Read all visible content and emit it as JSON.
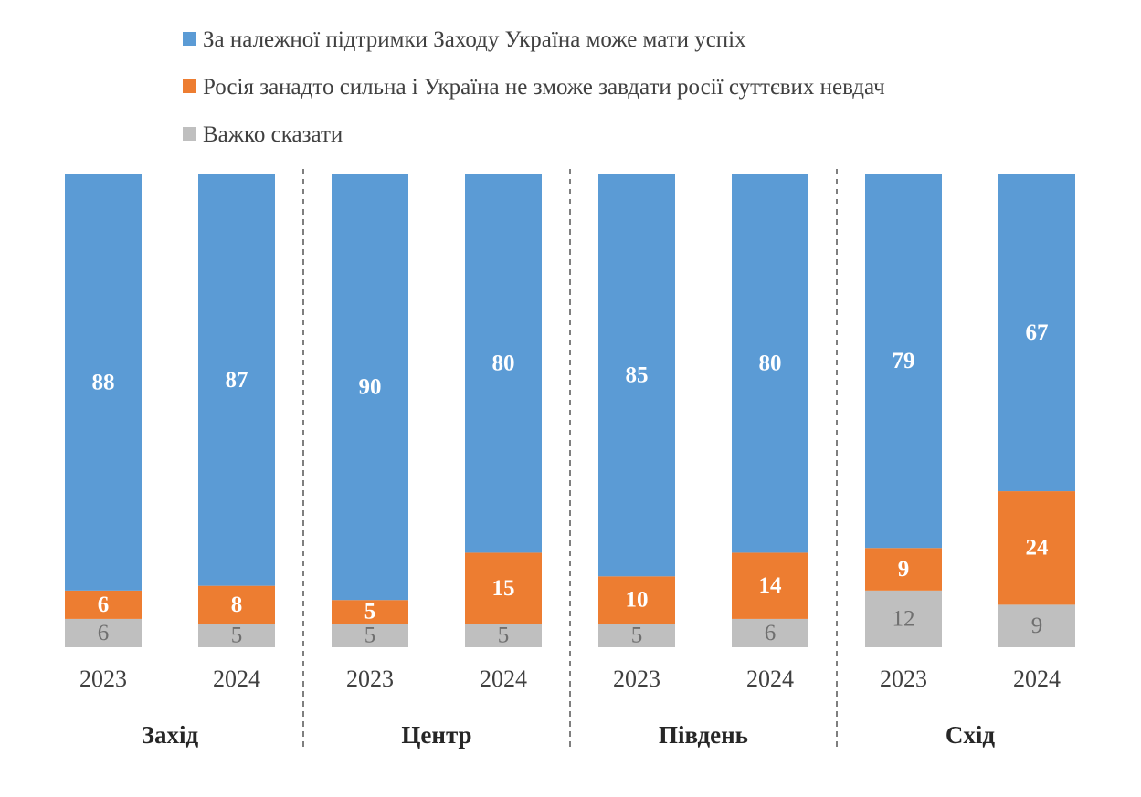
{
  "chart_data": {
    "type": "bar",
    "stacked": true,
    "title": "",
    "xlabel": "",
    "ylabel": "",
    "ylim": [
      0,
      100
    ],
    "legend_position": "top",
    "groups": [
      "Захід",
      "Центр",
      "Південь",
      "Схід"
    ],
    "categories": [
      "2023",
      "2024",
      "2023",
      "2024",
      "2023",
      "2024",
      "2023",
      "2024"
    ],
    "series": [
      {
        "name": "За належної підтримки Заходу Україна може мати успіх",
        "color": "#5B9BD5",
        "values": [
          88,
          87,
          90,
          80,
          85,
          80,
          79,
          67
        ]
      },
      {
        "name": "Росія занадто сильна і Україна не зможе завдати росії суттєвих невдач",
        "color": "#ED7D31",
        "values": [
          6,
          8,
          5,
          15,
          10,
          14,
          9,
          24
        ]
      },
      {
        "name": "Важко сказати",
        "color": "#BFBFBF",
        "values": [
          6,
          5,
          5,
          5,
          5,
          6,
          12,
          9
        ]
      }
    ]
  }
}
